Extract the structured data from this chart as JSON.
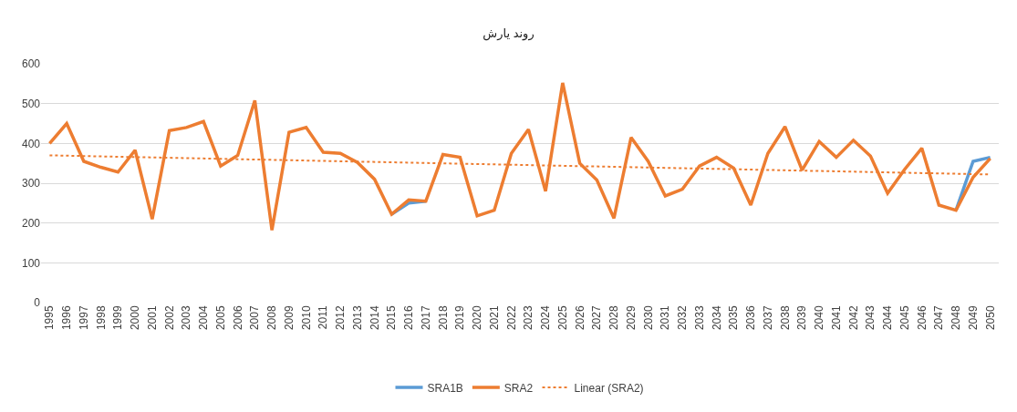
{
  "chart_data": {
    "type": "line",
    "title": "روند یارش",
    "x": [
      1995,
      1996,
      1997,
      1998,
      1999,
      2000,
      2001,
      2002,
      2003,
      2004,
      2005,
      2006,
      2007,
      2008,
      2009,
      2010,
      2011,
      2012,
      2013,
      2014,
      2015,
      2016,
      2017,
      2018,
      2019,
      2020,
      2021,
      2022,
      2023,
      2024,
      2025,
      2026,
      2027,
      2028,
      2029,
      2030,
      2031,
      2032,
      2033,
      2034,
      2035,
      2036,
      2037,
      2038,
      2039,
      2040,
      2041,
      2042,
      2043,
      2044,
      2045,
      2046,
      2047,
      2048,
      2049,
      2050
    ],
    "xlim": [
      1994.5,
      2050.5
    ],
    "xticks": [
      1995,
      1996,
      1997,
      1998,
      1999,
      2000,
      2001,
      2002,
      2003,
      2004,
      2005,
      2006,
      2007,
      2008,
      2009,
      2010,
      2011,
      2012,
      2013,
      2014,
      2015,
      2016,
      2017,
      2018,
      2019,
      2020,
      2021,
      2022,
      2023,
      2024,
      2025,
      2026,
      2027,
      2028,
      2029,
      2030,
      2031,
      2032,
      2033,
      2034,
      2035,
      2036,
      2037,
      2038,
      2039,
      2040,
      2041,
      2042,
      2043,
      2044,
      2045,
      2046,
      2047,
      2048,
      2049,
      2050
    ],
    "ylim": [
      0,
      600
    ],
    "yticks": [
      0,
      100,
      200,
      300,
      400,
      500,
      600
    ],
    "grid": "y",
    "legend": "bottom",
    "marker": "none",
    "series": [
      {
        "name": "SRA1B",
        "color": "#5b9bd5",
        "line_style": "solid",
        "values": [
          null,
          null,
          null,
          null,
          null,
          null,
          null,
          null,
          null,
          null,
          null,
          null,
          null,
          null,
          null,
          null,
          null,
          null,
          null,
          null,
          222,
          250,
          255,
          null,
          null,
          null,
          null,
          null,
          null,
          null,
          null,
          null,
          null,
          null,
          null,
          null,
          null,
          null,
          null,
          null,
          null,
          null,
          null,
          null,
          null,
          null,
          null,
          null,
          null,
          null,
          null,
          null,
          null,
          232,
          355,
          365
        ]
      },
      {
        "name": "SRA2",
        "color": "#ed7d31",
        "line_style": "solid",
        "values": [
          400,
          450,
          355,
          340,
          328,
          383,
          210,
          432,
          440,
          455,
          343,
          370,
          508,
          182,
          428,
          440,
          378,
          375,
          352,
          310,
          222,
          258,
          255,
          372,
          365,
          218,
          232,
          375,
          435,
          280,
          552,
          350,
          308,
          212,
          415,
          355,
          268,
          285,
          343,
          365,
          338,
          245,
          375,
          442,
          333,
          405,
          365,
          408,
          368,
          275,
          335,
          388,
          245,
          232,
          315,
          362
        ]
      },
      {
        "name": "Linear (SRA2)",
        "color": "#ed7d31",
        "line_style": "dotted",
        "x": [
          1995,
          2050
        ],
        "values": [
          370,
          322
        ]
      }
    ]
  }
}
